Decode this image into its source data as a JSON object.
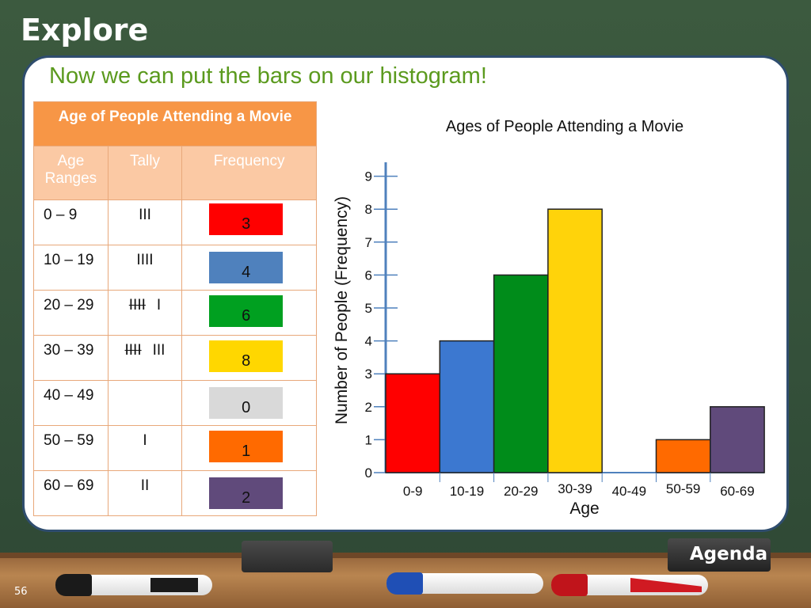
{
  "page": {
    "title": "Explore",
    "heading": "Now we can put the bars on our histogram!",
    "slide_number": "56",
    "agenda_label": "Agenda"
  },
  "table": {
    "title": "Age of People Attending a Movie",
    "headers": [
      "Age Ranges",
      "Tally",
      "Frequency"
    ],
    "rows": [
      {
        "range": "0 – 9",
        "tally": "III",
        "frequency": "3",
        "color": "#ff0000"
      },
      {
        "range": "10 – 19",
        "tally": "IIII",
        "frequency": "4",
        "color": "#4f81bd"
      },
      {
        "range": "20 – 29",
        "tally_strike": "IIII",
        "tally_rest": "I",
        "frequency": "6",
        "color": "#00a020"
      },
      {
        "range": "30 – 39",
        "tally_strike": "IIII",
        "tally_rest": "III",
        "frequency": "8",
        "color": "#ffd700"
      },
      {
        "range": "40 – 49",
        "tally": "",
        "frequency": "0",
        "color": "#d9d9d9"
      },
      {
        "range": "50 – 59",
        "tally": "I",
        "frequency": "1",
        "color": "#ff6a00"
      },
      {
        "range": "60 – 69",
        "tally": "II",
        "frequency": "2",
        "color": "#604a7b"
      }
    ]
  },
  "chart_data": {
    "type": "bar",
    "title": "Ages of People Attending a Movie",
    "xlabel": "Age",
    "ylabel": "Number of People (Frequency)",
    "categories": [
      "0-9",
      "10-19",
      "20-29",
      "30-39",
      "40-49",
      "50-59",
      "60-69"
    ],
    "values": [
      3,
      4,
      6,
      8,
      0,
      1,
      2
    ],
    "colors": [
      "#ff0000",
      "#3c78d0",
      "#008c1a",
      "#ffd30a",
      "#d9d9d9",
      "#ff6a00",
      "#604a7b"
    ],
    "yticks": [
      "0",
      "1",
      "2",
      "3",
      "4",
      "5",
      "6",
      "7",
      "8",
      "9"
    ],
    "ylim": [
      0,
      9
    ],
    "grid": false
  }
}
